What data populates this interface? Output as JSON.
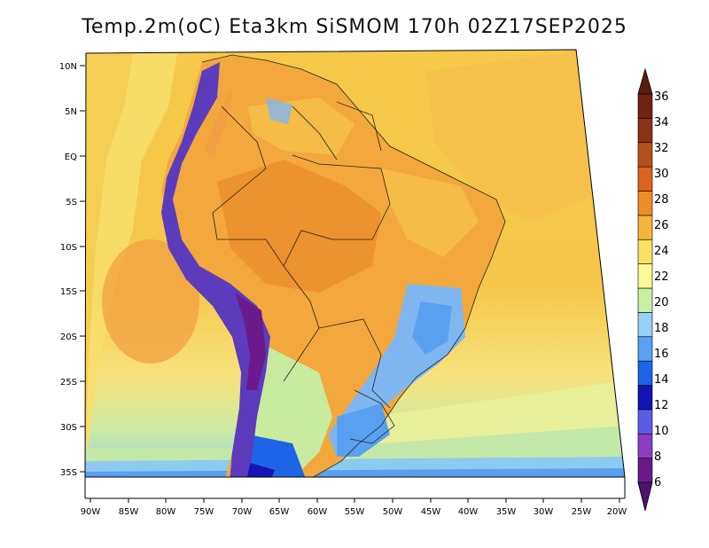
{
  "title": "Temp.2m(oC) Eta3km SiSMOM 170h 02Z17SEP2025",
  "lat_labels": [
    "10N",
    "5N",
    "EQ",
    "5S",
    "10S",
    "15S",
    "20S",
    "25S",
    "30S",
    "35S"
  ],
  "lon_labels": [
    "90W",
    "85W",
    "80W",
    "75W",
    "70W",
    "65W",
    "60W",
    "55W",
    "50W",
    "45W",
    "40W",
    "35W",
    "30W",
    "25W",
    "20W"
  ],
  "colorbar": {
    "labels": [
      "6",
      "8",
      "10",
      "12",
      "14",
      "16",
      "18",
      "20",
      "22",
      "24",
      "26",
      "28",
      "30",
      "32",
      "34",
      "36"
    ],
    "colors": [
      "#6a1a8a",
      "#8c3cc2",
      "#5c5ce8",
      "#1414b4",
      "#1e64e6",
      "#5aa0f0",
      "#96d2f8",
      "#c8f0a0",
      "#fafa96",
      "#fae164",
      "#f5b43c",
      "#f08c28",
      "#dc641e",
      "#b4501e",
      "#8c3214",
      "#6e2410"
    ]
  },
  "palette": {
    "ocean_warm": "#f5c84c",
    "ocean_yellow": "#f7e06a",
    "ocean_cool": "#c8eba0",
    "cold_south": "#96d2f8",
    "land_hot": "#f2a83c",
    "andes": "#5c3bbd",
    "highland": "#7fb6f0"
  }
}
